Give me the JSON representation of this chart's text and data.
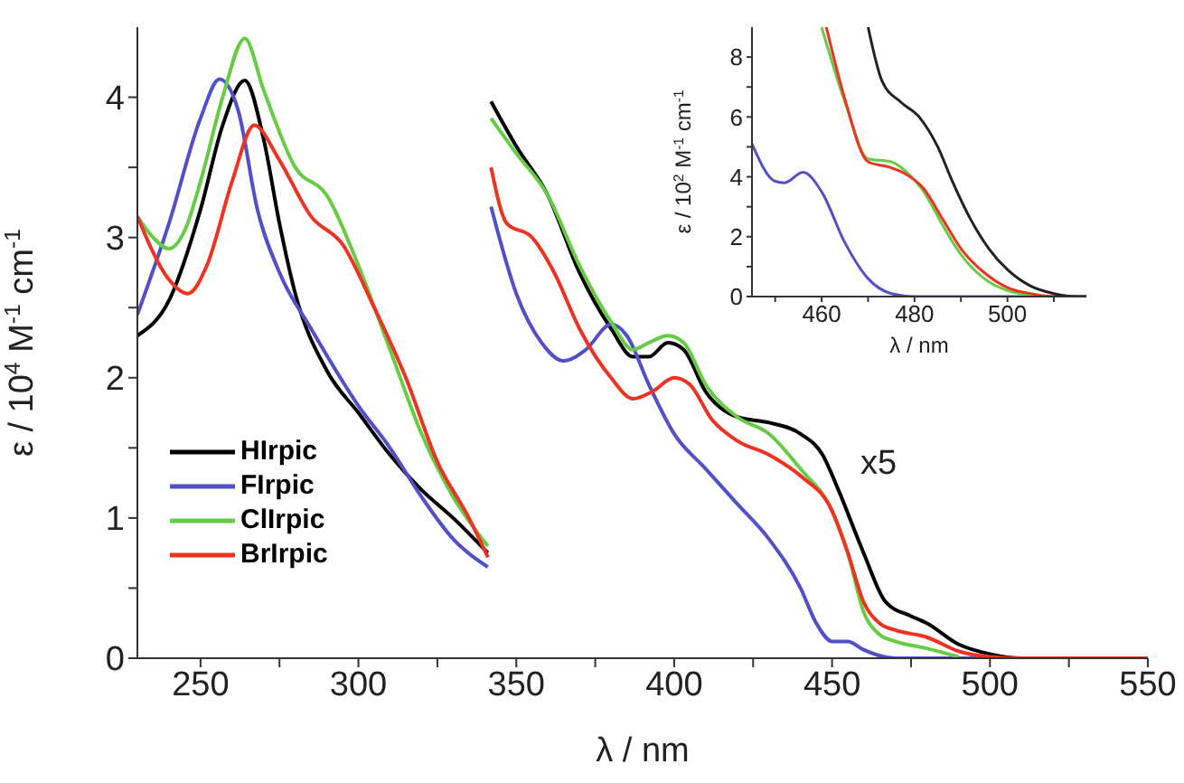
{
  "chart_data": [
    {
      "type": "line",
      "xlabel": "λ / nm",
      "ylabel": "ε / 10$^{4}$ M$^{-1}$ cm$^{-1}$",
      "xlim": [
        230,
        550
      ],
      "ylim": [
        0,
        4.5
      ],
      "xticks": [
        250,
        {
          "value": 275,
          "label": null
        },
        300,
        {
          "value": 325,
          "label": null
        },
        350,
        {
          "value": 375,
          "label": null
        },
        400,
        {
          "value": 425,
          "label": null
        },
        450,
        {
          "value": 475,
          "label": null
        },
        500,
        {
          "value": 525,
          "label": null
        },
        550
      ],
      "yticks": [
        0,
        {
          "value": 0.5,
          "label": null
        },
        1,
        {
          "value": 1.5,
          "label": null
        },
        2,
        {
          "value": 2.5,
          "label": null
        },
        3,
        {
          "value": 3.5,
          "label": null
        },
        4
      ],
      "legend": "bottom left",
      "marker": "none",
      "annotations": [
        "x5"
      ],
      "series": [
        {
          "name": "HIrpic",
          "color": "#000000",
          "x": [
            230,
            240,
            250,
            257,
            264,
            270,
            275,
            280,
            290,
            300,
            310,
            320,
            330,
            341,
            341.5,
            342,
            350,
            360,
            370,
            380,
            387,
            392,
            398,
            403,
            410,
            420,
            430,
            440,
            447,
            452,
            460,
            467,
            475,
            480,
            490,
            500,
            510,
            550
          ],
          "values": [
            2.3,
            2.55,
            3.2,
            3.8,
            4.12,
            3.7,
            3.1,
            2.6,
            2.05,
            1.75,
            1.45,
            1.2,
            1.0,
            0.75,
            null,
            3.97,
            3.65,
            3.3,
            2.75,
            2.35,
            2.15,
            2.15,
            2.25,
            2.2,
            1.9,
            1.72,
            1.68,
            1.6,
            1.45,
            1.2,
            0.75,
            0.4,
            0.3,
            0.25,
            0.1,
            0.03,
            0,
            0
          ]
        },
        {
          "name": "FIrpic",
          "color": "#5050c8",
          "x": [
            230,
            240,
            250,
            256,
            262,
            268,
            275,
            285,
            300,
            310,
            320,
            330,
            341,
            341.5,
            342,
            350,
            358,
            365,
            372,
            380,
            385,
            392,
            400,
            410,
            420,
            430,
            440,
            445,
            450,
            455,
            460,
            470,
            550
          ],
          "values": [
            2.45,
            3.1,
            3.85,
            4.13,
            3.9,
            3.2,
            2.75,
            2.35,
            1.8,
            1.5,
            1.15,
            0.85,
            0.65,
            null,
            3.22,
            2.6,
            2.25,
            2.12,
            2.2,
            2.38,
            2.3,
            1.95,
            1.6,
            1.35,
            1.1,
            0.85,
            0.5,
            0.25,
            0.12,
            0.12,
            0.06,
            0,
            0
          ]
        },
        {
          "name": "ClIrpic",
          "color": "#66cc44",
          "x": [
            230,
            235,
            240,
            245,
            250,
            257,
            264,
            270,
            280,
            290,
            300,
            310,
            320,
            330,
            341,
            341.5,
            342,
            350,
            360,
            370,
            380,
            387,
            392,
            398,
            403,
            410,
            420,
            430,
            440,
            450,
            455,
            460,
            465,
            470,
            480,
            490
          ],
          "values": [
            3.15,
            3.0,
            2.92,
            3.05,
            3.4,
            4.0,
            4.42,
            4.05,
            3.5,
            3.3,
            2.8,
            2.2,
            1.6,
            1.15,
            0.8,
            null,
            3.85,
            3.6,
            3.3,
            2.8,
            2.4,
            2.2,
            2.25,
            2.3,
            2.25,
            1.95,
            1.72,
            1.6,
            1.35,
            1.05,
            0.75,
            0.33,
            0.17,
            0.12,
            0.07,
            0.01
          ]
        },
        {
          "name": "BrIrpic",
          "color": "#ee3322",
          "x": [
            230,
            240,
            246,
            252,
            260,
            267,
            275,
            285,
            295,
            305,
            315,
            325,
            335,
            341,
            341.5,
            342,
            347,
            355,
            362,
            370,
            380,
            387,
            393,
            400,
            405,
            412,
            420,
            430,
            440,
            450,
            455,
            460,
            465,
            470,
            480,
            490,
            500,
            510,
            550
          ],
          "values": [
            3.15,
            2.7,
            2.6,
            2.8,
            3.4,
            3.8,
            3.55,
            3.15,
            2.95,
            2.5,
            2.0,
            1.4,
            1.0,
            0.72,
            null,
            3.5,
            3.1,
            3.0,
            2.75,
            2.35,
            2.0,
            1.85,
            1.9,
            2.0,
            1.95,
            1.7,
            1.55,
            1.45,
            1.3,
            1.05,
            0.75,
            0.4,
            0.25,
            0.2,
            0.15,
            0.05,
            0.01,
            0,
            0
          ]
        }
      ]
    },
    {
      "type": "line",
      "xlabel": "λ / nm",
      "ylabel": "ε / 10$^{2}$ M$^{-1}$ cm$^{-1}$",
      "xlim": [
        445,
        517
      ],
      "ylim": [
        0,
        9
      ],
      "xticks": [
        {
          "value": 450,
          "label": null
        },
        460,
        {
          "value": 470,
          "label": null
        },
        480,
        {
          "value": 490,
          "label": null
        },
        500,
        {
          "value": 510,
          "label": null
        }
      ],
      "yticks": [
        0,
        {
          "value": 1,
          "label": null
        },
        2,
        {
          "value": 3,
          "label": null
        },
        4,
        {
          "value": 5,
          "label": null
        },
        6,
        {
          "value": 7,
          "label": null
        },
        8
      ],
      "marker": "none",
      "series": [
        {
          "color": "#5050c8",
          "x": [
            445,
            450,
            452,
            456,
            460,
            465,
            470,
            475,
            480,
            517
          ],
          "values": [
            5.1,
            3.85,
            3.8,
            4.15,
            3.5,
            1.8,
            0.6,
            0.1,
            0,
            0
          ]
        },
        {
          "color": "#66cc44",
          "x": [
            460,
            465,
            470,
            475,
            478,
            482,
            486,
            490,
            495,
            500,
            505,
            510,
            517
          ],
          "values": [
            9,
            6.5,
            4.6,
            4.5,
            4.2,
            3.5,
            2.4,
            1.4,
            0.6,
            0.2,
            0.05,
            0,
            0
          ]
        },
        {
          "color": "#ee3322",
          "x": [
            461,
            465,
            470,
            475,
            478,
            482,
            486,
            490,
            495,
            500,
            505,
            510,
            517
          ],
          "values": [
            9,
            6.6,
            4.5,
            4.3,
            4.1,
            3.6,
            2.6,
            1.6,
            0.8,
            0.3,
            0.1,
            0,
            0
          ]
        },
        {
          "color": "#222222",
          "x": [
            470,
            473,
            477,
            481,
            485,
            488,
            492,
            496,
            500,
            505,
            510,
            515,
            517
          ],
          "values": [
            9,
            7.2,
            6.5,
            6.0,
            5.0,
            3.9,
            2.6,
            1.6,
            0.9,
            0.35,
            0.1,
            0,
            0
          ]
        }
      ]
    }
  ]
}
